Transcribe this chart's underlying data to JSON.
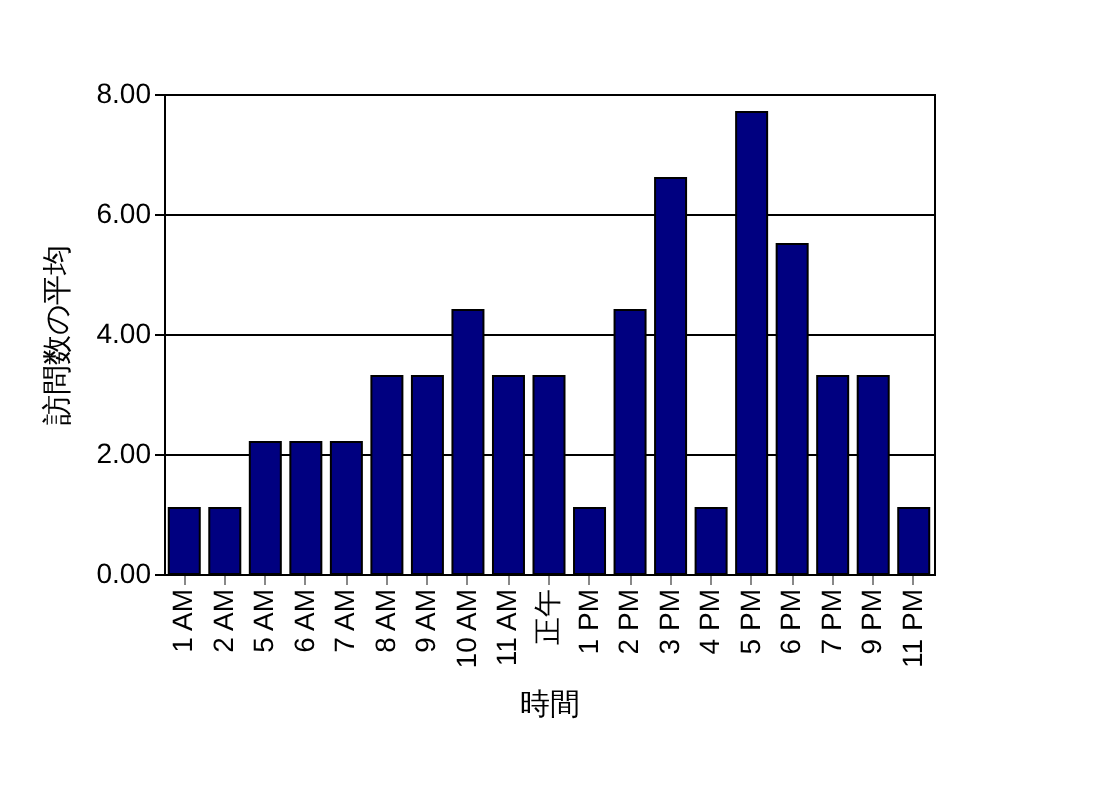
{
  "chart_data": {
    "type": "bar",
    "xlabel": "時間",
    "ylabel": "訪問数の平均",
    "categories": [
      "1 AM",
      "2 AM",
      "5 AM",
      "6 AM",
      "7 AM",
      "8 AM",
      "9 AM",
      "10 AM",
      "11 AM",
      "正午",
      "1 PM",
      "2 PM",
      "3 PM",
      "4 PM",
      "5 PM",
      "6 PM",
      "7 PM",
      "9 PM",
      "11 PM"
    ],
    "values": [
      1.1,
      1.1,
      2.2,
      2.2,
      2.2,
      3.3,
      3.3,
      4.4,
      3.3,
      3.3,
      1.1,
      4.4,
      6.6,
      1.1,
      7.7,
      5.5,
      3.3,
      3.3,
      1.1
    ],
    "color": "#000080",
    "ylim": [
      0,
      8
    ],
    "yticks": [
      {
        "value": 0,
        "label": "0.00"
      },
      {
        "value": 2,
        "label": "2.00"
      },
      {
        "value": 4,
        "label": "4.00"
      },
      {
        "value": 6,
        "label": "6.00"
      },
      {
        "value": 8,
        "label": "8.00"
      }
    ],
    "grid": "y"
  }
}
